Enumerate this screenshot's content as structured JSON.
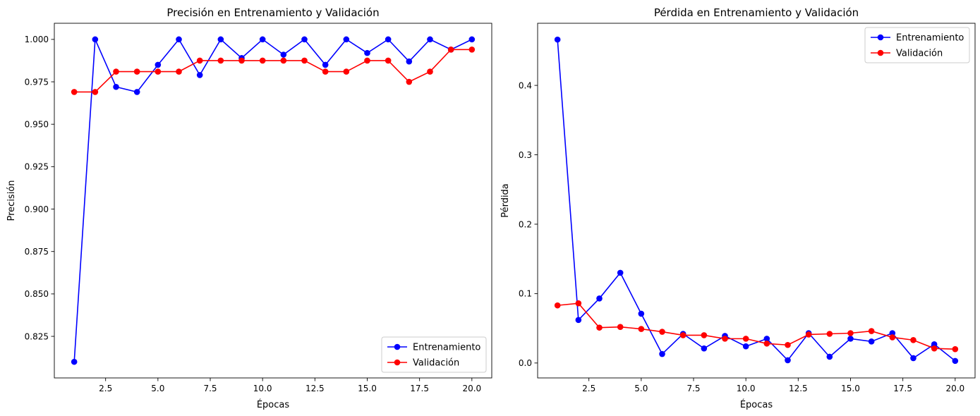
{
  "chart_data": [
    {
      "type": "line",
      "title": "Precisión en Entrenamiento y Validación",
      "xlabel": "Épocas",
      "ylabel": "Precisión",
      "xlim": [
        0.05,
        20.95
      ],
      "ylim": [
        0.8005,
        1.0095
      ],
      "xticks": [
        2.5,
        5.0,
        7.5,
        10.0,
        12.5,
        15.0,
        17.5,
        20.0
      ],
      "xtick_labels": [
        "2.5",
        "5.0",
        "7.5",
        "10.0",
        "12.5",
        "15.0",
        "17.5",
        "20.0"
      ],
      "yticks": [
        0.825,
        0.85,
        0.875,
        0.9,
        0.925,
        0.95,
        0.975,
        1.0
      ],
      "ytick_labels": [
        "0.825",
        "0.850",
        "0.875",
        "0.900",
        "0.925",
        "0.950",
        "0.975",
        "1.000"
      ],
      "grid": false,
      "legend_position": "lower-right",
      "x": [
        1,
        2,
        3,
        4,
        5,
        6,
        7,
        8,
        9,
        10,
        11,
        12,
        13,
        14,
        15,
        16,
        17,
        18,
        19,
        20
      ],
      "series": [
        {
          "name": "Entrenamiento",
          "color": "#0000ff",
          "values": [
            0.81,
            1.0,
            0.972,
            0.969,
            0.985,
            1.0,
            0.979,
            1.0,
            0.989,
            1.0,
            0.991,
            1.0,
            0.985,
            1.0,
            0.992,
            1.0,
            0.987,
            1.0,
            0.994,
            1.0
          ]
        },
        {
          "name": "Validación",
          "color": "#ff0000",
          "values": [
            0.969,
            0.969,
            0.981,
            0.981,
            0.981,
            0.981,
            0.9875,
            0.9875,
            0.9875,
            0.9875,
            0.9875,
            0.9875,
            0.981,
            0.981,
            0.9875,
            0.9875,
            0.975,
            0.981,
            0.994,
            0.994
          ]
        }
      ]
    },
    {
      "type": "line",
      "title": "Pérdida en Entrenamiento y Validación",
      "xlabel": "Épocas",
      "ylabel": "Pérdida",
      "xlim": [
        0.05,
        20.95
      ],
      "ylim": [
        -0.0215,
        0.4895
      ],
      "xticks": [
        2.5,
        5.0,
        7.5,
        10.0,
        12.5,
        15.0,
        17.5,
        20.0
      ],
      "xtick_labels": [
        "2.5",
        "5.0",
        "7.5",
        "10.0",
        "12.5",
        "15.0",
        "17.5",
        "20.0"
      ],
      "yticks": [
        0.0,
        0.1,
        0.2,
        0.3,
        0.4
      ],
      "ytick_labels": [
        "0.0",
        "0.1",
        "0.2",
        "0.3",
        "0.4"
      ],
      "grid": false,
      "legend_position": "top-right",
      "x": [
        1,
        2,
        3,
        4,
        5,
        6,
        7,
        8,
        9,
        10,
        11,
        12,
        13,
        14,
        15,
        16,
        17,
        18,
        19,
        20
      ],
      "series": [
        {
          "name": "Entrenamiento",
          "color": "#0000ff",
          "values": [
            0.466,
            0.062,
            0.093,
            0.13,
            0.071,
            0.013,
            0.042,
            0.021,
            0.039,
            0.024,
            0.035,
            0.004,
            0.043,
            0.009,
            0.035,
            0.031,
            0.043,
            0.007,
            0.027,
            0.003
          ]
        },
        {
          "name": "Validación",
          "color": "#ff0000",
          "values": [
            0.083,
            0.086,
            0.051,
            0.052,
            0.049,
            0.045,
            0.04,
            0.04,
            0.035,
            0.035,
            0.028,
            0.026,
            0.041,
            0.042,
            0.043,
            0.046,
            0.037,
            0.033,
            0.021,
            0.02
          ]
        }
      ]
    }
  ]
}
